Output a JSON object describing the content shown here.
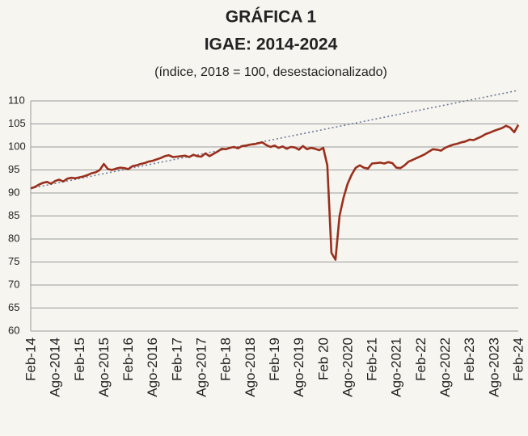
{
  "chart_data": {
    "type": "line",
    "title": "GRÁFICA 1",
    "subtitle": "IGAE: 2014-2024",
    "note": "(índice, 2018 = 100, desestacionalizado)",
    "categories": [
      "Feb-14",
      null,
      null,
      null,
      null,
      null,
      "Ago-2014",
      null,
      null,
      null,
      null,
      null,
      "Feb-15",
      null,
      null,
      null,
      null,
      null,
      "Ago-2015",
      null,
      null,
      null,
      null,
      null,
      "Feb-16",
      null,
      null,
      null,
      null,
      null,
      "Ago-2016",
      null,
      null,
      null,
      null,
      null,
      "Feb-17",
      null,
      null,
      null,
      null,
      null,
      "Ago-2017",
      null,
      null,
      null,
      null,
      null,
      "Feb-18",
      null,
      null,
      null,
      null,
      null,
      "Ago-2018",
      null,
      null,
      null,
      null,
      null,
      "Feb-19",
      null,
      null,
      null,
      null,
      null,
      "Ago-2019",
      null,
      null,
      null,
      null,
      null,
      "Feb 20",
      null,
      null,
      null,
      null,
      null,
      "Ago-2020",
      null,
      null,
      null,
      null,
      null,
      "Feb-21",
      null,
      null,
      null,
      null,
      null,
      "Ago-2021",
      null,
      null,
      null,
      null,
      null,
      "Feb-22",
      null,
      null,
      null,
      null,
      null,
      "Ago-2022",
      null,
      null,
      null,
      null,
      null,
      "Feb-23",
      null,
      null,
      null,
      null,
      null,
      "Ago-2023",
      null,
      null,
      null,
      null,
      null,
      "Feb-24"
    ],
    "values": [
      91.0,
      91.3,
      91.8,
      92.2,
      92.4,
      92.0,
      92.6,
      92.9,
      92.5,
      93.1,
      93.3,
      93.2,
      93.4,
      93.6,
      93.9,
      94.3,
      94.5,
      95.0,
      96.3,
      95.2,
      95.0,
      95.3,
      95.5,
      95.4,
      95.2,
      95.8,
      96.0,
      96.3,
      96.5,
      96.8,
      97.0,
      97.3,
      97.6,
      98.0,
      98.2,
      97.8,
      97.9,
      98.0,
      98.1,
      97.8,
      98.3,
      98.0,
      97.9,
      98.6,
      98.0,
      98.5,
      99.0,
      99.6,
      99.5,
      99.8,
      100.0,
      99.7,
      100.2,
      100.3,
      100.5,
      100.6,
      100.8,
      101.0,
      100.4,
      100.0,
      100.3,
      99.8,
      100.1,
      99.6,
      100.0,
      99.9,
      99.4,
      100.2,
      99.5,
      99.8,
      99.6,
      99.3,
      99.8,
      96.0,
      77.0,
      75.5,
      85.0,
      89.0,
      92.0,
      94.0,
      95.5,
      96.0,
      95.5,
      95.3,
      96.4,
      96.5,
      96.6,
      96.4,
      96.7,
      96.5,
      95.5,
      95.4,
      96.0,
      96.8,
      97.2,
      97.6,
      98.0,
      98.4,
      99.0,
      99.5,
      99.4,
      99.2,
      99.8,
      100.2,
      100.5,
      100.7,
      101.0,
      101.2,
      101.6,
      101.5,
      101.9,
      102.3,
      102.8,
      103.1,
      103.5,
      103.8,
      104.1,
      104.6,
      104.2,
      103.2,
      104.8
    ],
    "color": "#9a2f1c",
    "trend": {
      "values": [
        91.0,
        112.3
      ],
      "color": "#6b7a99"
    },
    "ylim": [
      60,
      110
    ],
    "yticks": [
      60,
      65,
      70,
      75,
      80,
      85,
      90,
      95,
      100,
      105,
      110
    ],
    "grid": true
  }
}
